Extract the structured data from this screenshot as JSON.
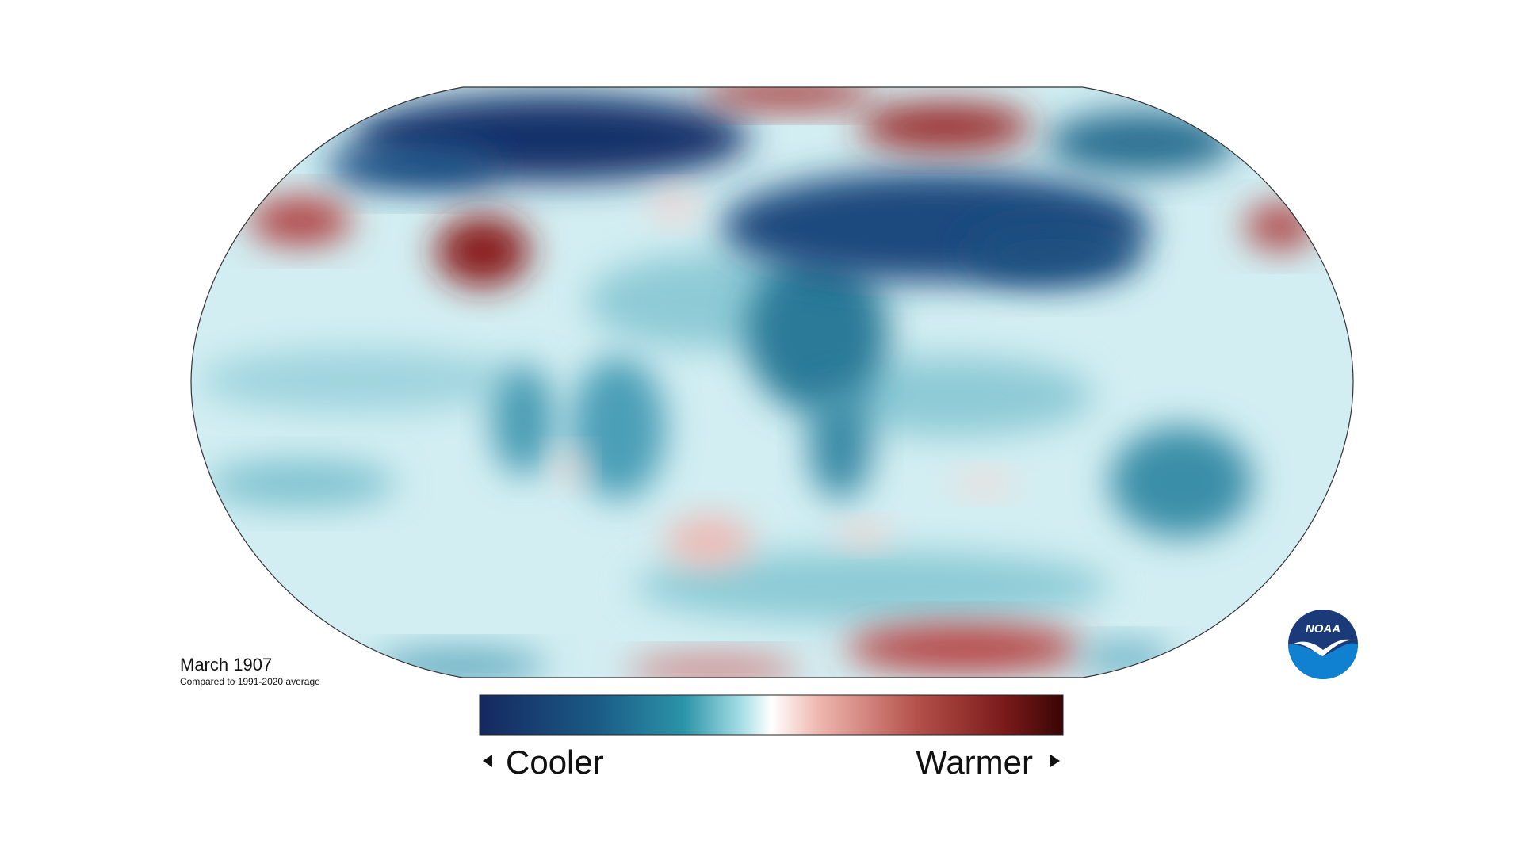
{
  "map": {
    "title": "March 1907",
    "subtitle": "Compared to 1991-2020 average"
  },
  "legend": {
    "low": "Cooler",
    "high": "Warmer"
  },
  "logo": {
    "text": "NOAA"
  }
}
